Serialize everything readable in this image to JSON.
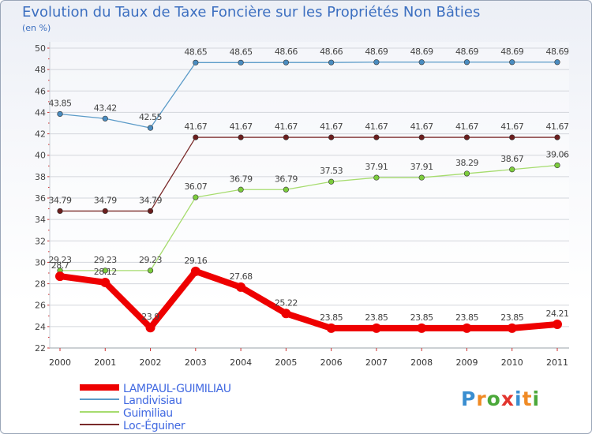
{
  "title": "Evolution du Taux de Taxe Foncière sur les Propriétés Non Bâties",
  "unit_label": "(en %)",
  "logo": {
    "text": "Proxiti",
    "colors": [
      "#3a8ed0",
      "#f08a24",
      "#4ba83a",
      "#e2342d",
      "#3a8ed0",
      "#f08a24",
      "#4ba83a"
    ]
  },
  "chart_data": {
    "type": "line",
    "title": "Evolution du Taux de Taxe Foncière sur les Propriétés Non Bâties",
    "ylabel": "(en %)",
    "xlabel": "",
    "ylim": [
      22,
      50
    ],
    "yticks": [
      22,
      24,
      26,
      28,
      30,
      32,
      34,
      36,
      38,
      40,
      42,
      44,
      46,
      48,
      50
    ],
    "x": [
      "2000",
      "2001",
      "2002",
      "2003",
      "2004",
      "2005",
      "2006",
      "2007",
      "2008",
      "2009",
      "2010",
      "2011"
    ],
    "grid": "horizontal",
    "legend_position": "bottom-left",
    "series": [
      {
        "name": "Landivisiau",
        "color": "#5b9bc8",
        "marker": "#4a8cc0",
        "values": [
          43.85,
          43.42,
          42.55,
          48.65,
          48.65,
          48.66,
          48.66,
          48.69,
          48.69,
          48.69,
          48.69,
          48.69
        ],
        "labels": [
          "43.85",
          "43.42",
          "42.55",
          "48.65",
          "48.65",
          "48.66",
          "48.66",
          "48.69",
          "48.69",
          "48.69",
          "48.69",
          "48.69"
        ]
      },
      {
        "name": "Loc-Éguiner",
        "color": "#7a2a2a",
        "marker": "#6b1e1e",
        "values": [
          34.79,
          34.79,
          34.79,
          41.67,
          41.67,
          41.67,
          41.67,
          41.67,
          41.67,
          41.67,
          41.67,
          41.67
        ],
        "labels": [
          "34.79",
          "34.79",
          "34.79",
          "41.67",
          "41.67",
          "41.67",
          "41.67",
          "41.67",
          "41.67",
          "41.67",
          "41.67",
          "41.67"
        ]
      },
      {
        "name": "Guimiliau",
        "color": "#a6dc6e",
        "marker": "#7ccc3c",
        "values": [
          29.23,
          29.23,
          29.23,
          36.07,
          36.79,
          36.79,
          37.53,
          37.91,
          37.91,
          38.29,
          38.67,
          39.06
        ],
        "labels": [
          "29.23",
          "29.23",
          "29.23",
          "36.07",
          "36.79",
          "36.79",
          "37.53",
          "37.91",
          "37.91",
          "38.29",
          "38.67",
          "39.06"
        ]
      },
      {
        "name": "LAMPAUL-GUIMILIAU",
        "color": "#ee0000",
        "marker": "#ee0000",
        "bold": true,
        "values": [
          28.7,
          28.12,
          23.9,
          29.16,
          27.68,
          25.22,
          23.85,
          23.85,
          23.85,
          23.85,
          23.85,
          24.21
        ],
        "labels": [
          "28.7",
          "28.12",
          "23.9",
          "29.16",
          "27.68",
          "25.22",
          "23.85",
          "23.85",
          "23.85",
          "23.85",
          "23.85",
          "24.21"
        ]
      }
    ],
    "legend_order": [
      "LAMPAUL-GUIMILIAU",
      "Landivisiau",
      "Guimiliau",
      "Loc-Éguiner"
    ]
  }
}
